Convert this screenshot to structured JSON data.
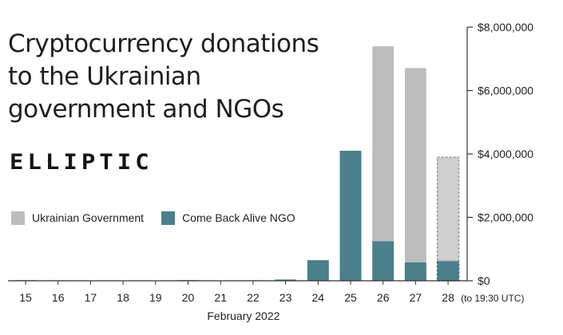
{
  "chart_data": {
    "type": "bar",
    "stacked": true,
    "title_lines": [
      "Cryptocurrency donations",
      "to the Ukrainian",
      "government and NGOs"
    ],
    "logo_text": "ELLIPTIC",
    "xlabel": "February 2022",
    "categories": [
      "15",
      "16",
      "17",
      "18",
      "19",
      "20",
      "21",
      "22",
      "23",
      "24",
      "25",
      "26",
      "27",
      "28"
    ],
    "last_category_note": "(to 19:30 UTC)",
    "y_ticks": [
      0,
      2000000,
      4000000,
      6000000,
      8000000
    ],
    "y_tick_labels": [
      "$0",
      "$2,000,000",
      "$4,000,000",
      "$6,000,000",
      "$8,000,000"
    ],
    "ylim": [
      0,
      8000000
    ],
    "y_axis_side": "right",
    "grid": false,
    "legend_position": "left, below title",
    "partial_last_bar": true,
    "series": [
      {
        "name": "Come Back Alive NGO",
        "color": "#4a7f8c",
        "values": [
          20000,
          15000,
          10000,
          10000,
          10000,
          20000,
          10000,
          15000,
          40000,
          650000,
          4100000,
          1250000,
          580000,
          620000
        ]
      },
      {
        "name": "Ukrainian Government",
        "color": "#bdbdbd",
        "values": [
          0,
          0,
          0,
          0,
          0,
          0,
          0,
          0,
          0,
          0,
          0,
          6150000,
          6130000,
          3280000
        ]
      }
    ]
  }
}
